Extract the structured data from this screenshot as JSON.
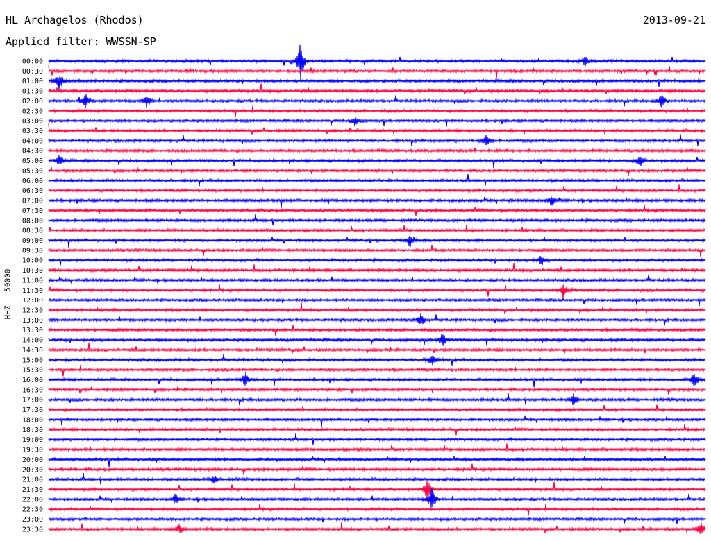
{
  "header": {
    "station": "HL Archagelos (Rhodos)",
    "date": "2013-09-21",
    "filter_label": "Applied filter: WWSSN-SP"
  },
  "chart_data": {
    "type": "line",
    "title": "HL Archagelos (Rhodos)",
    "ylabel": "HHZ - 50000",
    "row_labels": [
      "00:00",
      "00:30",
      "01:00",
      "01:30",
      "02:00",
      "02:30",
      "03:00",
      "03:30",
      "04:00",
      "04:30",
      "05:00",
      "05:30",
      "06:00",
      "06:30",
      "07:00",
      "07:30",
      "08:00",
      "08:30",
      "09:00",
      "09:30",
      "10:00",
      "10:30",
      "11:00",
      "11:30",
      "12:00",
      "12:30",
      "13:00",
      "13:30",
      "14:00",
      "14:30",
      "15:00",
      "15:30",
      "16:00",
      "16:30",
      "17:00",
      "17:30",
      "18:00",
      "18:30",
      "19:00",
      "19:30",
      "20:00",
      "20:30",
      "21:00",
      "21:30",
      "22:00",
      "22:30",
      "23:00",
      "23:30"
    ],
    "row_minutes": 30,
    "colors": {
      "even_rows": "#0000ff",
      "odd_rows": "#ff0040"
    },
    "events": [
      {
        "row": 0,
        "minute": 11.5,
        "amp": 32
      },
      {
        "row": 0,
        "minute": 24.5,
        "amp": 6
      },
      {
        "row": 2,
        "minute": 0.5,
        "amp": 14
      },
      {
        "row": 4,
        "minute": 1.7,
        "amp": 12
      },
      {
        "row": 4,
        "minute": 4.5,
        "amp": 10
      },
      {
        "row": 4,
        "minute": 28.0,
        "amp": 12
      },
      {
        "row": 6,
        "minute": 14.0,
        "amp": 10
      },
      {
        "row": 8,
        "minute": 20.0,
        "amp": 12
      },
      {
        "row": 10,
        "minute": 0.5,
        "amp": 10
      },
      {
        "row": 10,
        "minute": 27.0,
        "amp": 12
      },
      {
        "row": 14,
        "minute": 23.0,
        "amp": 10
      },
      {
        "row": 18,
        "minute": 16.5,
        "amp": 10
      },
      {
        "row": 20,
        "minute": 22.5,
        "amp": 10
      },
      {
        "row": 23,
        "minute": 23.5,
        "amp": 14
      },
      {
        "row": 26,
        "minute": 17.0,
        "amp": 10
      },
      {
        "row": 28,
        "minute": 18.0,
        "amp": 12
      },
      {
        "row": 30,
        "minute": 17.5,
        "amp": 12
      },
      {
        "row": 32,
        "minute": 9.0,
        "amp": 12
      },
      {
        "row": 32,
        "minute": 29.5,
        "amp": 14
      },
      {
        "row": 34,
        "minute": 24.0,
        "amp": 10
      },
      {
        "row": 42,
        "minute": 7.6,
        "amp": 8
      },
      {
        "row": 43,
        "minute": 17.3,
        "amp": 18
      },
      {
        "row": 44,
        "minute": 17.5,
        "amp": 20
      },
      {
        "row": 44,
        "minute": 5.8,
        "amp": 8
      },
      {
        "row": 47,
        "minute": 6.0,
        "amp": 8
      },
      {
        "row": 47,
        "minute": 29.8,
        "amp": 10
      }
    ]
  }
}
